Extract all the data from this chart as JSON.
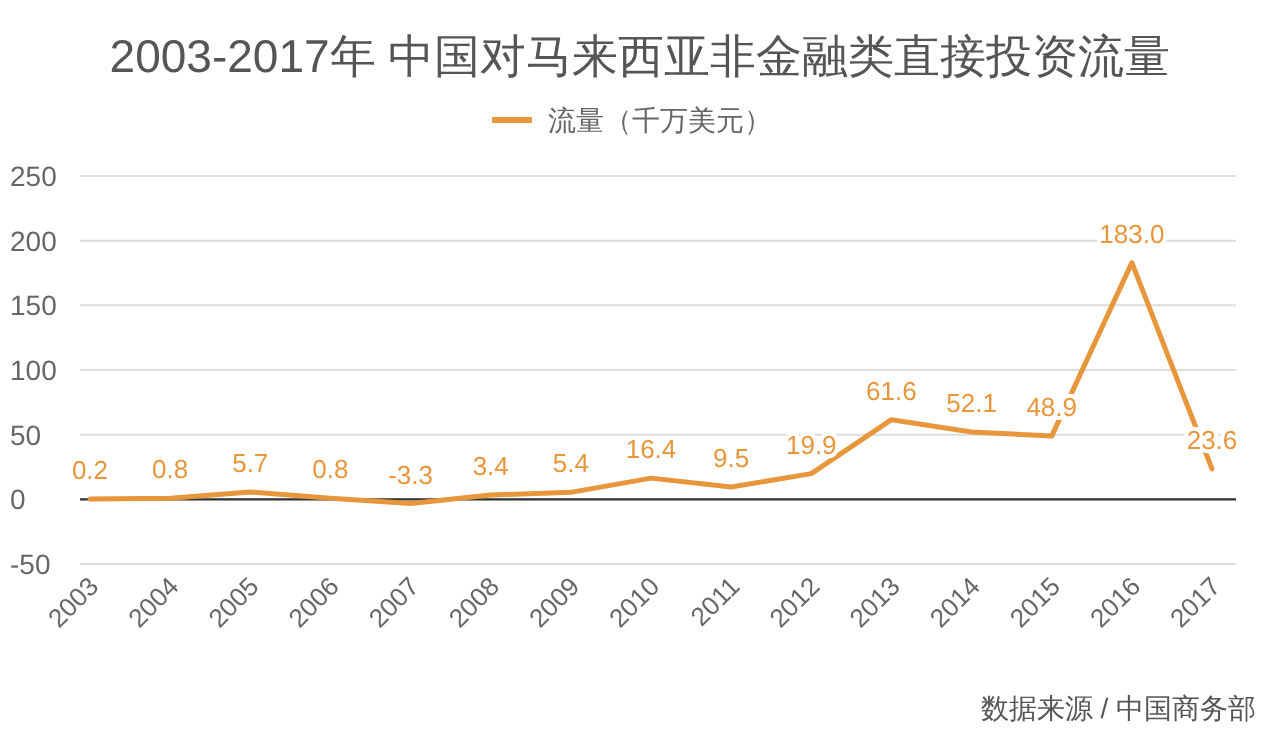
{
  "chart_data": {
    "type": "line",
    "title": "2003-2017年 中国对马来西亚非金融类直接投资流量",
    "categories": [
      "2003",
      "2004",
      "2005",
      "2006",
      "2007",
      "2008",
      "2009",
      "2010",
      "2011",
      "2012",
      "2013",
      "2014",
      "2015",
      "2016",
      "2017"
    ],
    "series": [
      {
        "name": "流量（千万美元）",
        "color": "#e8963c",
        "values": [
          0.2,
          0.8,
          5.7,
          0.8,
          -3.3,
          3.4,
          5.4,
          16.4,
          9.5,
          19.9,
          61.6,
          52.1,
          48.9,
          183.0,
          23.6
        ],
        "value_labels": [
          "0.2",
          "0.8",
          "5.7",
          "0.8",
          "-3.3",
          "3.4",
          "5.4",
          "16.4",
          "9.5",
          "19.9",
          "61.6",
          "52.1",
          "48.9",
          "183.0",
          "23.6"
        ]
      }
    ],
    "ylim": [
      -50,
      250
    ],
    "yticks": [
      -50,
      0,
      50,
      100,
      150,
      200,
      250
    ],
    "grid": "y",
    "legend": "top",
    "marker": "none",
    "line_style": "solid",
    "annotations": [
      "数据来源 / 中国商务部"
    ]
  }
}
